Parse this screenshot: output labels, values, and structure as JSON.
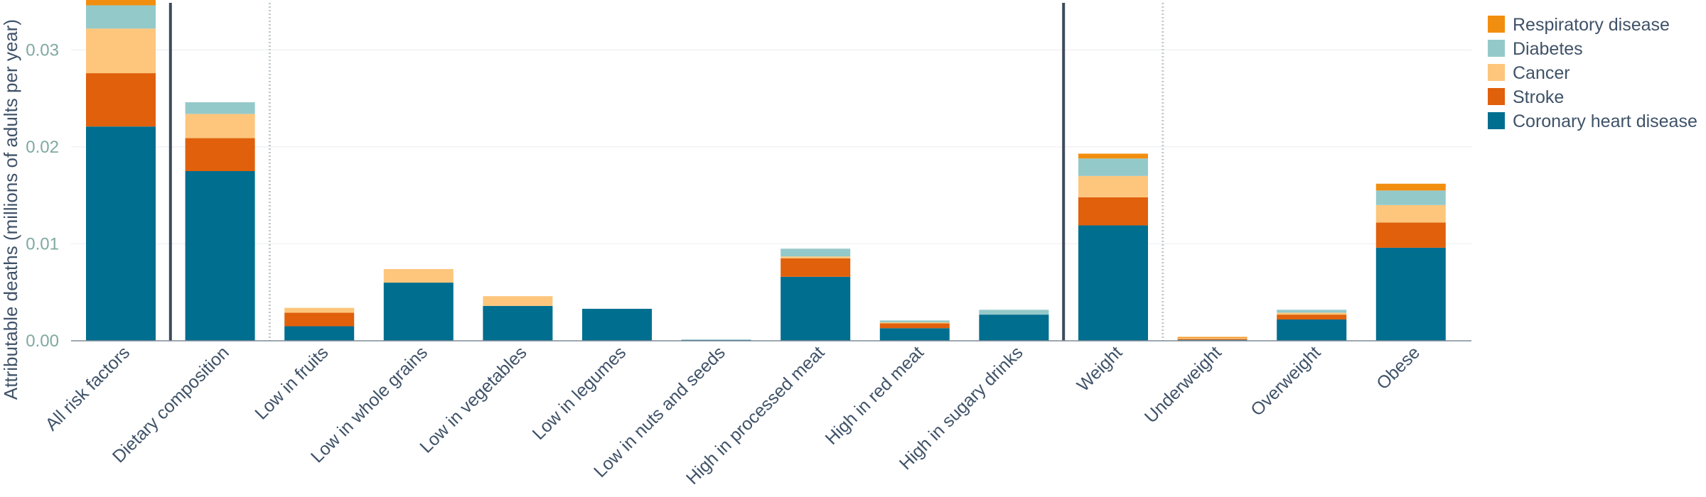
{
  "chart_data": {
    "type": "bar",
    "stacked": true,
    "title": "",
    "xlabel": "",
    "ylabel": "Attributable deaths (millions of adults per year)",
    "ylim": [
      0,
      0.035
    ],
    "yticks": [
      0.0,
      0.01,
      0.02,
      0.03
    ],
    "ytick_labels": [
      "0.00",
      "0.01",
      "0.02",
      "0.03"
    ],
    "grid": true,
    "legend_position": "top-right",
    "categories": [
      "All risk factors",
      "Dietary composition",
      "Low in fruits",
      "Low in whole grains",
      "Low in vegetables",
      "Low in legumes",
      "Low in nuts and seeds",
      "High in processed meat",
      "High in red meat",
      "High in sugary drinks",
      "Weight",
      "Underweight",
      "Overweight",
      "Obese"
    ],
    "series": [
      {
        "name": "Coronary heart disease",
        "color": "#006e8f",
        "values": [
          0.0221,
          0.0175,
          0.0015,
          0.006,
          0.0036,
          0.0033,
          0.0001,
          0.0066,
          0.0013,
          0.0027,
          0.0119,
          0.0001,
          0.0022,
          0.0096
        ]
      },
      {
        "name": "Stroke",
        "color": "#e0600c",
        "values": [
          0.0055,
          0.0034,
          0.0014,
          0.0,
          0.0,
          0.0,
          0.0,
          0.0019,
          0.0005,
          0.0,
          0.0029,
          0.0001,
          0.0005,
          0.0026
        ]
      },
      {
        "name": "Cancer",
        "color": "#fdc67c",
        "values": [
          0.0046,
          0.0025,
          0.0005,
          0.0014,
          0.001,
          0.0,
          0.0,
          0.0002,
          0.0001,
          0.0,
          0.0022,
          0.0001,
          0.0002,
          0.0018
        ]
      },
      {
        "name": "Diabetes",
        "color": "#94c9ca",
        "values": [
          0.0024,
          0.0012,
          0.0,
          0.0,
          0.0,
          0.0,
          0.0,
          0.0008,
          0.0002,
          0.0005,
          0.0018,
          0.0,
          0.0003,
          0.0015
        ]
      },
      {
        "name": "Respiratory disease",
        "color": "#f28e0f",
        "values": [
          0.0006,
          0.0,
          0.0,
          0.0,
          0.0,
          0.0,
          0.0,
          0.0,
          0.0,
          0.0,
          0.0005,
          0.0001,
          0.0,
          0.0007
        ]
      }
    ],
    "group_separators": [
      {
        "after_category": "All risk factors",
        "style": "solid"
      },
      {
        "after_category": "Dietary composition",
        "style": "dotted"
      },
      {
        "after_category": "High in sugary drinks",
        "style": "solid"
      },
      {
        "after_category": "Weight",
        "style": "dotted"
      }
    ]
  }
}
